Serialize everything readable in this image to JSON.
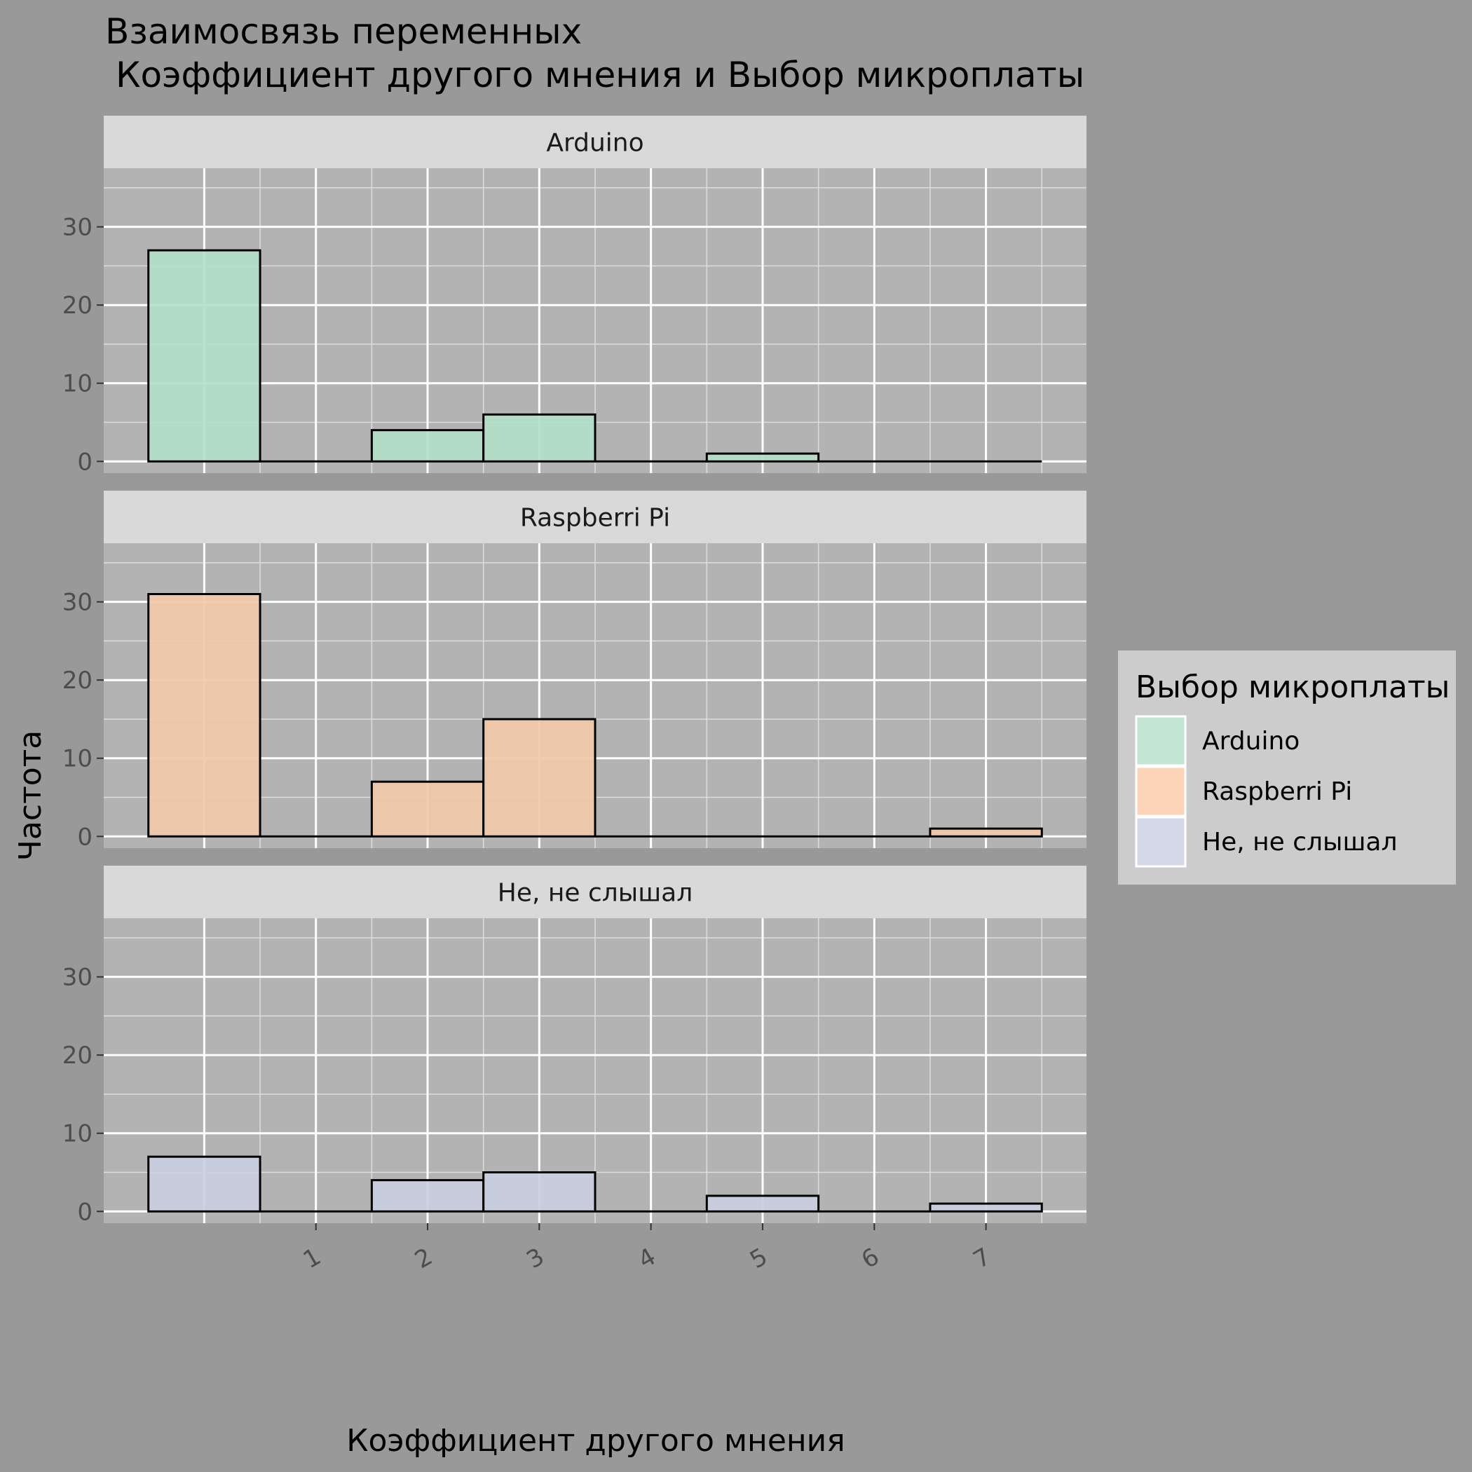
{
  "chart_data": {
    "type": "bar",
    "title_line1": "Взаимосвязь переменных",
    "title_line2": "Коэффициент другого мнения и Выбор микроплаты",
    "xlabel": "Коэффициент другого мнения",
    "ylabel": "Частота",
    "x": [
      0,
      1,
      2,
      3,
      4,
      5,
      6,
      7
    ],
    "x_tick_labels": [
      "1",
      "2",
      "3",
      "4",
      "5",
      "6",
      "7"
    ],
    "x_ticks": [
      1,
      2,
      3,
      4,
      5,
      6,
      7
    ],
    "xlim": [
      -0.9,
      7.9
    ],
    "ylim": [
      -1.5,
      37.5
    ],
    "y_ticks": [
      0,
      10,
      20,
      30
    ],
    "grid": true,
    "legend": {
      "title": "Выбор микроплаты",
      "position": "right"
    },
    "panels": [
      {
        "name": "Arduino",
        "color": "#b3dfc9",
        "values": [
          27,
          0,
          4,
          6,
          0,
          1,
          0,
          0
        ]
      },
      {
        "name": "Raspberri Pi",
        "color": "#f2c9a8",
        "values": [
          31,
          0,
          7,
          15,
          0,
          0,
          0,
          1
        ]
      },
      {
        "name": "Не, не слышал",
        "color": "#c9cfdf",
        "values": [
          7,
          0,
          4,
          5,
          0,
          2,
          0,
          1
        ]
      }
    ],
    "legend_colors": [
      "#c3e6d3",
      "#fcd5b9",
      "#d3d9e8"
    ]
  }
}
